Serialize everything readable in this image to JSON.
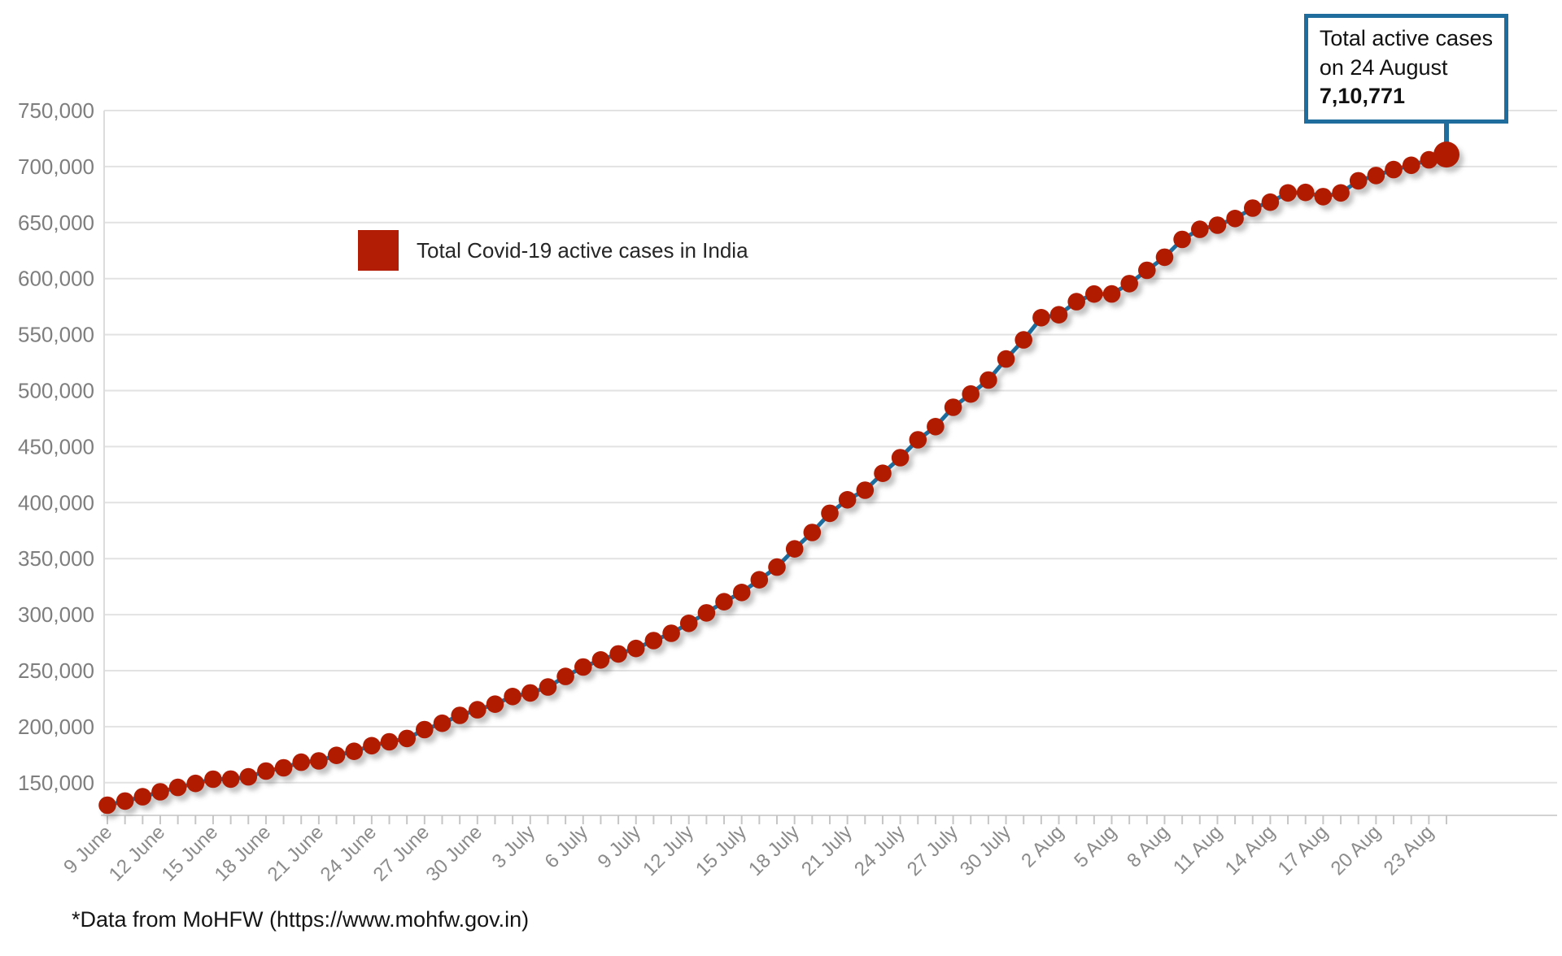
{
  "chart_data": {
    "type": "line",
    "title": "",
    "xlabel": "",
    "ylabel": "",
    "legend": "Total Covid-19 active cases in India",
    "legend_position": "top-left-inside",
    "grid": true,
    "ylim": [
      120000,
      750000
    ],
    "y_ticks": [
      150000,
      200000,
      250000,
      300000,
      350000,
      400000,
      450000,
      500000,
      550000,
      600000,
      650000,
      700000,
      750000
    ],
    "x_tick_every_days": 3,
    "x": [
      "9 June",
      "10 June",
      "11 June",
      "12 June",
      "13 June",
      "14 June",
      "15 June",
      "16 June",
      "17 June",
      "18 June",
      "19 June",
      "20 June",
      "21 June",
      "22 June",
      "23 June",
      "24 June",
      "25 June",
      "26 June",
      "27 June",
      "28 June",
      "29 June",
      "30 June",
      "1 July",
      "2 July",
      "3 July",
      "4 July",
      "5 July",
      "6 July",
      "7 July",
      "8 July",
      "9 July",
      "10 July",
      "11 July",
      "12 July",
      "13 July",
      "14 July",
      "15 July",
      "16 July",
      "17 July",
      "18 July",
      "19 July",
      "20 July",
      "21 July",
      "22 July",
      "23 July",
      "24 July",
      "25 July",
      "26 July",
      "27 July",
      "28 July",
      "29 July",
      "30 July",
      "31 July",
      "1 Aug",
      "2 Aug",
      "3 Aug",
      "4 Aug",
      "5 Aug",
      "6 Aug",
      "7 Aug",
      "8 Aug",
      "9 Aug",
      "10 Aug",
      "11 Aug",
      "12 Aug",
      "13 Aug",
      "14 Aug",
      "15 Aug",
      "16 Aug",
      "17 Aug",
      "18 Aug",
      "19 Aug",
      "20 Aug",
      "21 Aug",
      "22 Aug",
      "23 Aug",
      "24 Aug"
    ],
    "values": [
      129917,
      133632,
      137448,
      141842,
      145779,
      149348,
      153106,
      153178,
      155227,
      160384,
      163248,
      168269,
      169451,
      174387,
      178014,
      183022,
      186514,
      189463,
      197387,
      203051,
      210120,
      215125,
      220114,
      226947,
      230092,
      235433,
      244814,
      253287,
      259557,
      264944,
      269789,
      276882,
      283407,
      292258,
      301609,
      311565,
      319840,
      331146,
      342473,
      358692,
      373379,
      390459,
      402529,
      411133,
      426167,
      440135,
      456071,
      467882,
      485114,
      496988,
      509447,
      528242,
      545318,
      565103,
      567730,
      579357,
      586244,
      586298,
      595501,
      607384,
      619088,
      634945,
      643948,
      647657,
      653622,
      662938,
      668220,
      676514,
      676900,
      673166,
      676514,
      687330,
      692028,
      697330,
      701129,
      705988,
      710771
    ],
    "annotation": {
      "line1": "Total active cases",
      "line2": "on 24 August",
      "value": "7,10,771",
      "points_to": "24 Aug"
    },
    "footnote": "*Data from MoHFW (https://www.mohfw.gov.in)",
    "colors": {
      "dot": "#b11e05",
      "line": "#1e6d9d",
      "callout_border": "#1e6d9d",
      "gridline": "#e2e2e2",
      "axis": "#cccccc",
      "tick_label": "#8b8b8b"
    }
  }
}
